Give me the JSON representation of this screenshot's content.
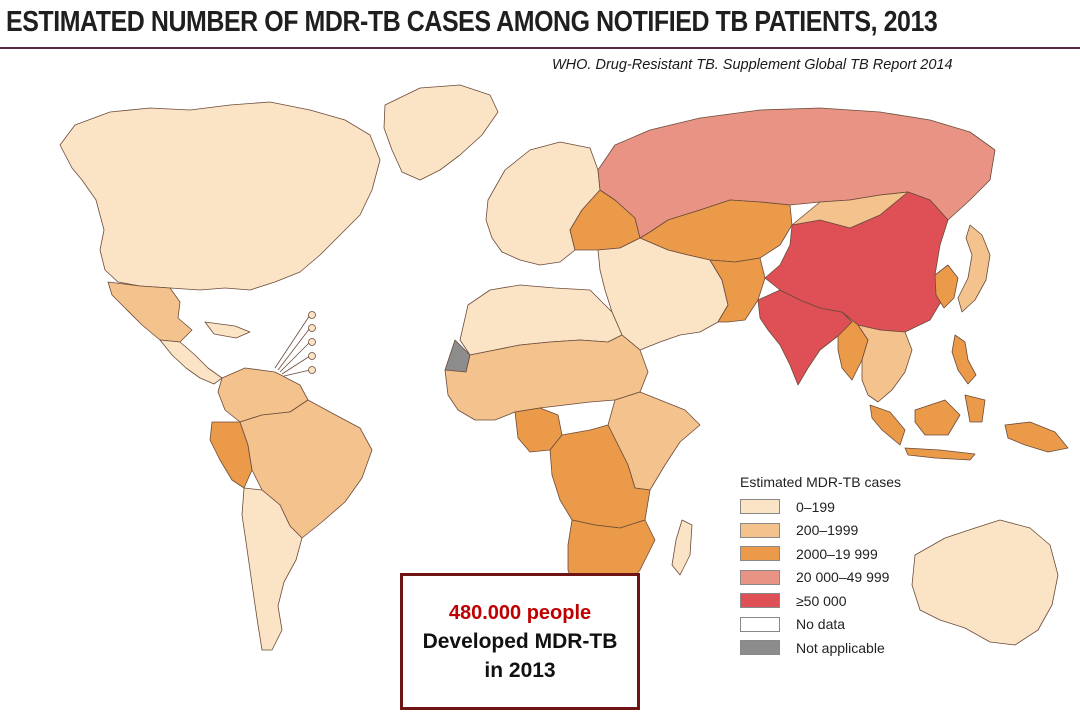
{
  "header": {
    "title": "ESTIMATED NUMBER OF MDR-TB CASES AMONG NOTIFIED TB PATIENTS, 2013",
    "source": "WHO. Drug-Resistant TB. Supplement Global TB Report 2014"
  },
  "colors": {
    "low": "#fbe3c6",
    "mid": "#f3c28d",
    "high": "#ea9a48",
    "very_high": "#e89383",
    "highest": "#de4f56",
    "no_data": "#ffffff",
    "not_applicable": "#8c8c8c",
    "border": "#6b4b3a",
    "title_rule": "#5c2a43",
    "callout_border": "#6e1414",
    "callout_highlight": "#c00000"
  },
  "legend": {
    "title": "Estimated MDR-TB cases",
    "items": [
      {
        "label": "0–199",
        "color": "#fbe3c6"
      },
      {
        "label": "200–1999",
        "color": "#f3c28d"
      },
      {
        "label": "2000–19 999",
        "color": "#ea9a48"
      },
      {
        "label": "20 000–49 999",
        "color": "#e89383"
      },
      {
        "label": "≥50 000",
        "color": "#de4f56"
      },
      {
        "label": "No data",
        "color": "#ffffff"
      },
      {
        "label": "Not applicable",
        "color": "#8c8c8c"
      }
    ]
  },
  "callout": {
    "highlight": "480.000 people",
    "line1": "Developed MDR-TB",
    "line2": "in 2013"
  },
  "regions": [
    {
      "name": "north-america",
      "category": "low"
    },
    {
      "name": "greenland",
      "category": "low"
    },
    {
      "name": "mexico",
      "category": "mid"
    },
    {
      "name": "central-america",
      "category": "low"
    },
    {
      "name": "caribbean",
      "category": "low"
    },
    {
      "name": "south-america-north",
      "category": "mid"
    },
    {
      "name": "peru",
      "category": "high"
    },
    {
      "name": "brazil",
      "category": "mid"
    },
    {
      "name": "southern-cone",
      "category": "low"
    },
    {
      "name": "europe",
      "category": "low"
    },
    {
      "name": "eastern-europe",
      "category": "high"
    },
    {
      "name": "russia",
      "category": "very_high"
    },
    {
      "name": "central-asia",
      "category": "high"
    },
    {
      "name": "middle-east",
      "category": "low"
    },
    {
      "name": "pakistan",
      "category": "high"
    },
    {
      "name": "india",
      "category": "highest"
    },
    {
      "name": "china",
      "category": "highest"
    },
    {
      "name": "mongolia",
      "category": "mid"
    },
    {
      "name": "korea",
      "category": "high"
    },
    {
      "name": "japan",
      "category": "mid"
    },
    {
      "name": "southeast-asia",
      "category": "mid"
    },
    {
      "name": "myanmar",
      "category": "high"
    },
    {
      "name": "indonesia",
      "category": "high"
    },
    {
      "name": "philippines",
      "category": "high"
    },
    {
      "name": "papua-new-guinea",
      "category": "high"
    },
    {
      "name": "north-africa",
      "category": "low"
    },
    {
      "name": "western-sahara",
      "category": "not_applicable"
    },
    {
      "name": "sahel",
      "category": "mid"
    },
    {
      "name": "nigeria",
      "category": "high"
    },
    {
      "name": "central-africa",
      "category": "high"
    },
    {
      "name": "east-africa",
      "category": "mid"
    },
    {
      "name": "southern-africa",
      "category": "high"
    },
    {
      "name": "madagascar",
      "category": "low"
    },
    {
      "name": "australia",
      "category": "low"
    }
  ]
}
